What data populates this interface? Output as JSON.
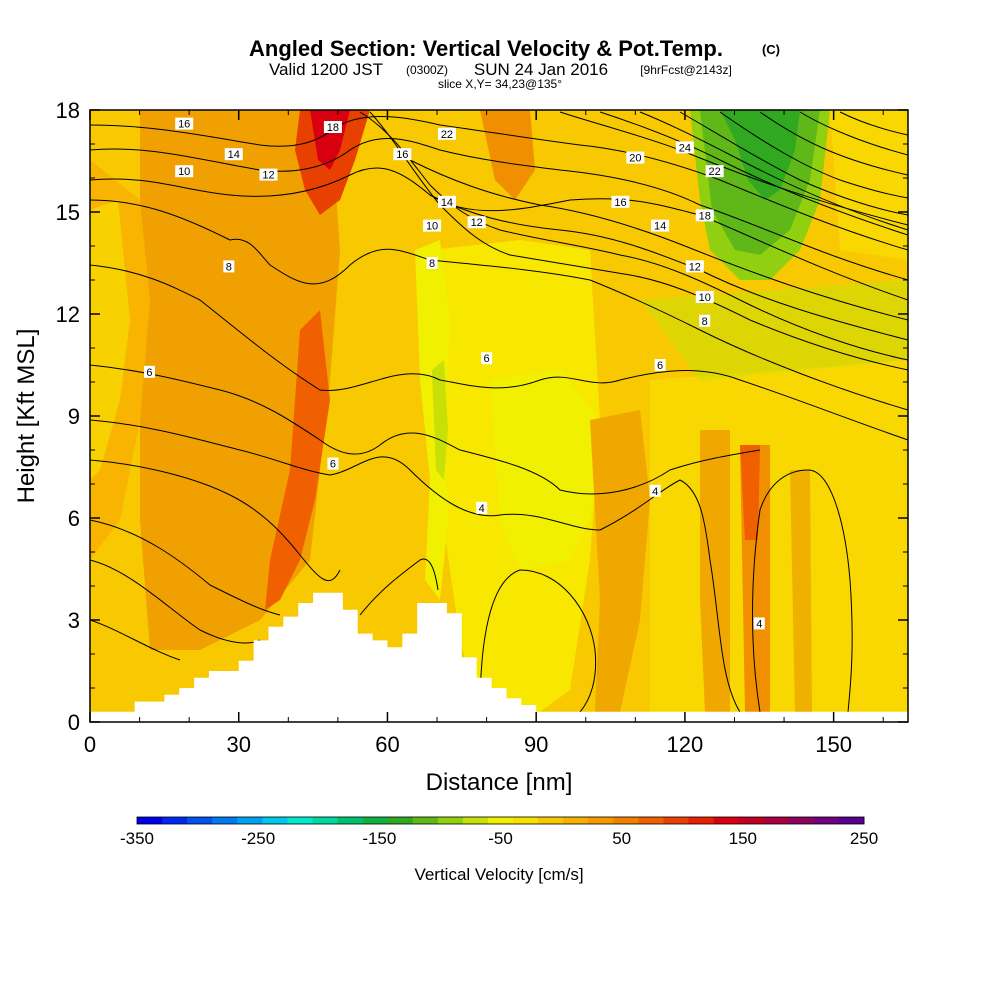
{
  "title": {
    "main": "Angled Section: Vertical Velocity & Pot.Temp.",
    "unit": "(C)",
    "valid_prefix": "Valid 1200 JST",
    "utc": "(0300Z)",
    "date": "SUN 24 Jan 2016",
    "forecast": "[9hrFcst@2143z]",
    "slice": "slice X,Y= 34,23@135°"
  },
  "colorbar": {
    "label": "Vertical Velocity [cm/s]",
    "tick_labels": [
      "-350",
      "-250",
      "-150",
      "-50",
      "50",
      "150",
      "250"
    ],
    "colors": [
      "#0000e8",
      "#0028f0",
      "#0050f0",
      "#0078f0",
      "#00a0f0",
      "#00c8e8",
      "#00e8d0",
      "#00d8a0",
      "#00c070",
      "#10b040",
      "#30a820",
      "#60b818",
      "#90d010",
      "#c8e008",
      "#f0f000",
      "#f8e000",
      "#f8c800",
      "#f8b000",
      "#f89800",
      "#f08000",
      "#f06000",
      "#e84000",
      "#e82000",
      "#d80010",
      "#c00020",
      "#a80040",
      "#8c0060",
      "#700080",
      "#580090"
    ]
  },
  "chart_data": {
    "type": "heatmap",
    "title": "Angled Section: Vertical Velocity & Pot.Temp. (C)",
    "xlabel": "Distance [nm]",
    "ylabel": "Height [Kft MSL]",
    "xlim": [
      0,
      165
    ],
    "ylim": [
      0,
      18
    ],
    "xticks": [
      0,
      30,
      60,
      90,
      120,
      150
    ],
    "yticks": [
      0,
      3,
      6,
      9,
      12,
      15,
      18
    ],
    "fill_variable": "Vertical Velocity [cm/s]",
    "fill_range": [
      -350,
      250
    ],
    "fill_regions": [
      {
        "name": "Background",
        "value": 25,
        "color": "#f8c800"
      },
      {
        "name": "Updraft core 40-55nm",
        "value": 120,
        "color": "#e84000"
      },
      {
        "name": "Updraft band 38-44nm",
        "value": 75,
        "color": "#f06000"
      },
      {
        "name": "Upward band 15-55nm",
        "value": 45,
        "color": "#f09000"
      },
      {
        "name": "Weak band 72-98nm",
        "value": -30,
        "color": "#f0f000"
      },
      {
        "name": "Weak band 68-76nm",
        "value": -60,
        "color": "#c8e008"
      },
      {
        "name": "Downdraft core 124-150nm",
        "value": -130,
        "color": "#30a820"
      },
      {
        "name": "Downdraft 120-150nm",
        "value": -90,
        "color": "#60b818"
      },
      {
        "name": "Upward band 122-128nm",
        "value": 60,
        "color": "#f09000"
      },
      {
        "name": "Upward band 132-136nm",
        "value": 80,
        "color": "#f06000"
      }
    ],
    "contour_variable": "Pot.Temp. (C)",
    "contour_labels": [
      {
        "text": "16",
        "x": 19,
        "y": 17.6
      },
      {
        "text": "18",
        "x": 49,
        "y": 17.5
      },
      {
        "text": "22",
        "x": 72,
        "y": 17.3
      },
      {
        "text": "14",
        "x": 29,
        "y": 16.7
      },
      {
        "text": "16",
        "x": 63,
        "y": 16.7
      },
      {
        "text": "20",
        "x": 110,
        "y": 16.6
      },
      {
        "text": "24",
        "x": 120,
        "y": 16.9
      },
      {
        "text": "22",
        "x": 126,
        "y": 16.2
      },
      {
        "text": "10",
        "x": 19,
        "y": 16.2
      },
      {
        "text": "12",
        "x": 36,
        "y": 16.1
      },
      {
        "text": "14",
        "x": 72,
        "y": 15.3
      },
      {
        "text": "16",
        "x": 107,
        "y": 15.3
      },
      {
        "text": "18",
        "x": 124,
        "y": 14.9
      },
      {
        "text": "10",
        "x": 69,
        "y": 14.6
      },
      {
        "text": "12",
        "x": 78,
        "y": 14.7
      },
      {
        "text": "14",
        "x": 115,
        "y": 14.6
      },
      {
        "text": "8",
        "x": 28,
        "y": 13.4
      },
      {
        "text": "8",
        "x": 69,
        "y": 13.5
      },
      {
        "text": "12",
        "x": 122,
        "y": 13.4
      },
      {
        "text": "10",
        "x": 124,
        "y": 12.5
      },
      {
        "text": "8",
        "x": 124,
        "y": 11.8
      },
      {
        "text": "6",
        "x": 12,
        "y": 10.3
      },
      {
        "text": "6",
        "x": 80,
        "y": 10.7
      },
      {
        "text": "6",
        "x": 115,
        "y": 10.5
      },
      {
        "text": "6",
        "x": 49,
        "y": 7.6
      },
      {
        "text": "4",
        "x": 79,
        "y": 6.3
      },
      {
        "text": "4",
        "x": 114,
        "y": 6.8
      },
      {
        "text": "4",
        "x": 135,
        "y": 2.9
      }
    ],
    "terrain_nm": [
      0,
      9,
      9,
      12,
      15,
      18,
      21,
      24,
      27,
      30,
      33,
      36,
      39,
      42,
      45,
      48,
      51,
      54,
      57,
      60,
      63,
      66,
      69,
      72,
      75,
      78,
      81,
      84,
      87,
      90,
      165
    ],
    "terrain_kft": [
      0.3,
      0.3,
      0.6,
      0.6,
      0.8,
      1.0,
      1.3,
      1.5,
      1.5,
      1.8,
      2.4,
      2.8,
      3.1,
      3.5,
      3.8,
      3.8,
      3.3,
      2.6,
      2.4,
      2.2,
      2.6,
      3.5,
      3.5,
      3.2,
      1.9,
      1.3,
      1.0,
      0.7,
      0.5,
      0.3,
      0.3
    ]
  }
}
